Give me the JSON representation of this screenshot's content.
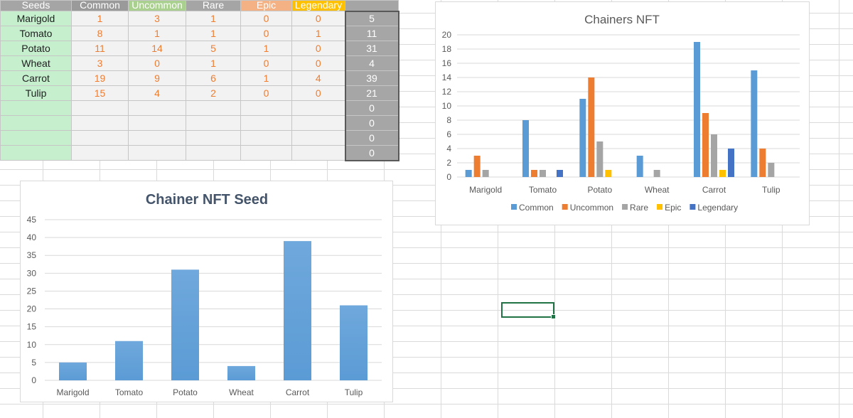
{
  "sheet": {
    "headers": [
      {
        "label": "Seeds",
        "color": "#a5a5a5"
      },
      {
        "label": "Common",
        "color": "#9a9a9a"
      },
      {
        "label": "Uncommon",
        "color": "#a9d08e"
      },
      {
        "label": "Rare",
        "color": "#a5a5a5"
      },
      {
        "label": "Epic",
        "color": "#f4b183"
      },
      {
        "label": "Legendary",
        "color": "#ffc000"
      }
    ],
    "rows": [
      {
        "seed": "Marigold",
        "values": [
          "1",
          "3",
          "1",
          "0",
          "0"
        ],
        "total": "5"
      },
      {
        "seed": "Tomato",
        "values": [
          "8",
          "1",
          "1",
          "0",
          "1"
        ],
        "total": "11"
      },
      {
        "seed": "Potato",
        "values": [
          "11",
          "14",
          "5",
          "1",
          "0"
        ],
        "total": "31"
      },
      {
        "seed": "Wheat",
        "values": [
          "3",
          "0",
          "1",
          "0",
          "0"
        ],
        "total": "4"
      },
      {
        "seed": "Carrot",
        "values": [
          "19",
          "9",
          "6",
          "1",
          "4"
        ],
        "total": "39"
      },
      {
        "seed": "Tulip",
        "values": [
          "15",
          "4",
          "2",
          "0",
          "0"
        ],
        "total": "21"
      },
      {
        "seed": "",
        "values": [
          "",
          "",
          "",
          "",
          ""
        ],
        "total": "0"
      },
      {
        "seed": "",
        "values": [
          "",
          "",
          "",
          "",
          ""
        ],
        "total": "0"
      },
      {
        "seed": "",
        "values": [
          "",
          "",
          "",
          "",
          ""
        ],
        "total": "0"
      },
      {
        "seed": "",
        "values": [
          "",
          "",
          "",
          "",
          ""
        ],
        "total": "0"
      }
    ]
  },
  "chart_data": [
    {
      "type": "bar",
      "title": "Chainers NFT",
      "categories": [
        "Marigold",
        "Tomato",
        "Potato",
        "Wheat",
        "Carrot",
        "Tulip"
      ],
      "series": [
        {
          "name": "Common",
          "color": "#5b9bd5",
          "values": [
            1,
            8,
            11,
            3,
            19,
            15
          ]
        },
        {
          "name": "Uncommon",
          "color": "#ed7d31",
          "values": [
            3,
            1,
            14,
            0,
            9,
            4
          ]
        },
        {
          "name": "Rare",
          "color": "#a5a5a5",
          "values": [
            1,
            1,
            5,
            1,
            6,
            2
          ]
        },
        {
          "name": "Epic",
          "color": "#ffc000",
          "values": [
            0,
            0,
            1,
            0,
            1,
            0
          ]
        },
        {
          "name": "Legendary",
          "color": "#4472c4",
          "values": [
            0,
            1,
            0,
            0,
            4,
            0
          ]
        }
      ],
      "ylim": [
        0,
        20
      ],
      "yticks": [
        0,
        2,
        4,
        6,
        8,
        10,
        12,
        14,
        16,
        18,
        20
      ],
      "grid": true,
      "legend": "bottom"
    },
    {
      "type": "bar",
      "title": "Chainer NFT Seed",
      "categories": [
        "Marigold",
        "Tomato",
        "Potato",
        "Wheat",
        "Carrot",
        "Tulip"
      ],
      "values": [
        5,
        11,
        31,
        4,
        39,
        21
      ],
      "color": "#5b9bd5",
      "ylim": [
        0,
        45
      ],
      "yticks": [
        0,
        5,
        10,
        15,
        20,
        25,
        30,
        35,
        40,
        45
      ],
      "grid": true
    }
  ]
}
